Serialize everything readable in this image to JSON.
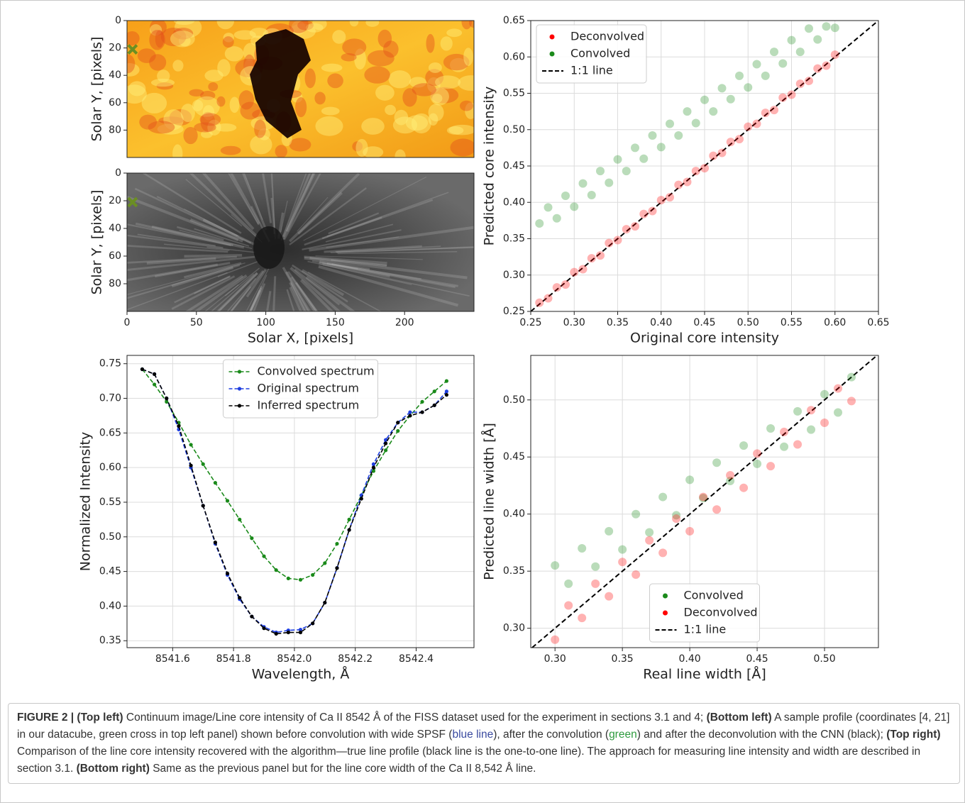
{
  "chart_data": [
    {
      "type": "image",
      "colormap": "hot",
      "ylabel": "Solar Y, [pixels]",
      "xlim": [
        0,
        250
      ],
      "ylim": [
        100,
        0
      ],
      "yticks": [
        0,
        20,
        40,
        60,
        80
      ],
      "marker_x": 4,
      "marker_y": 21,
      "marker_color": "#6b8e23"
    },
    {
      "type": "image",
      "colormap": "gray",
      "xlabel": "Solar X, [pixels]",
      "ylabel": "Solar Y, [pixels]",
      "xlim": [
        0,
        250
      ],
      "ylim": [
        100,
        0
      ],
      "xticks": [
        0,
        50,
        100,
        150,
        200
      ],
      "yticks": [
        0,
        20,
        40,
        60,
        80
      ],
      "marker_x": 4,
      "marker_y": 21,
      "marker_color": "#6b8e23"
    },
    {
      "type": "scatter",
      "xlabel": "Original core intensity",
      "ylabel": "Predicted core intensity",
      "xlim": [
        0.25,
        0.65
      ],
      "ylim": [
        0.25,
        0.65
      ],
      "xticks": [
        0.25,
        {
          "value": 0.3,
          "label": "0.30"
        },
        0.35,
        {
          "value": 0.4,
          "label": "0.40"
        },
        0.45,
        {
          "value": 0.5,
          "label": "0.50"
        },
        0.55,
        {
          "value": 0.6,
          "label": "0.60"
        },
        0.65
      ],
      "yticks": [
        0.25,
        {
          "value": 0.3,
          "label": "0.30"
        },
        0.35,
        {
          "value": 0.4,
          "label": "0.40"
        },
        0.45,
        {
          "value": 0.5,
          "label": "0.50"
        },
        0.55,
        {
          "value": 0.6,
          "label": "0.60"
        },
        0.65
      ],
      "grid": true,
      "legend": "upper left",
      "alpha": 0.3,
      "reference_line": "1:1 line",
      "series": [
        {
          "name": "Deconvolved",
          "color": "#ff0000",
          "x": [
            0.26,
            0.27,
            0.28,
            0.29,
            0.3,
            0.31,
            0.32,
            0.33,
            0.34,
            0.35,
            0.36,
            0.37,
            0.38,
            0.39,
            0.4,
            0.41,
            0.42,
            0.43,
            0.44,
            0.45,
            0.46,
            0.47,
            0.48,
            0.49,
            0.5,
            0.51,
            0.52,
            0.53,
            0.54,
            0.55,
            0.56,
            0.57,
            0.58,
            0.59,
            0.6
          ],
          "values": [
            0.262,
            0.268,
            0.283,
            0.287,
            0.304,
            0.308,
            0.323,
            0.327,
            0.344,
            0.348,
            0.363,
            0.367,
            0.384,
            0.388,
            0.403,
            0.407,
            0.424,
            0.428,
            0.443,
            0.447,
            0.464,
            0.468,
            0.483,
            0.487,
            0.504,
            0.508,
            0.523,
            0.527,
            0.544,
            0.548,
            0.563,
            0.567,
            0.584,
            0.588,
            0.603
          ]
        },
        {
          "name": "Convolved",
          "color": "#1a8a1a",
          "x": [
            0.26,
            0.27,
            0.28,
            0.29,
            0.3,
            0.31,
            0.32,
            0.33,
            0.34,
            0.35,
            0.36,
            0.37,
            0.38,
            0.39,
            0.4,
            0.41,
            0.42,
            0.43,
            0.44,
            0.45,
            0.46,
            0.47,
            0.48,
            0.49,
            0.5,
            0.51,
            0.52,
            0.53,
            0.54,
            0.55,
            0.56,
            0.57,
            0.58,
            0.59,
            0.6
          ],
          "values": [
            0.371,
            0.393,
            0.378,
            0.409,
            0.394,
            0.426,
            0.41,
            0.443,
            0.427,
            0.459,
            0.443,
            0.475,
            0.46,
            0.492,
            0.476,
            0.508,
            0.492,
            0.525,
            0.509,
            0.541,
            0.525,
            0.557,
            0.542,
            0.574,
            0.558,
            0.59,
            0.574,
            0.607,
            0.591,
            0.623,
            0.607,
            0.639,
            0.624,
            0.642,
            0.64
          ]
        }
      ]
    },
    {
      "type": "line",
      "xlabel": "Wavelength, Å",
      "ylabel": "Normalized Intensity",
      "xlim": [
        8541.45,
        8542.59
      ],
      "ylim": [
        0.34,
        0.762
      ],
      "xticks": [
        8541.6,
        8541.8,
        {
          "value": 8542.0,
          "label": "8542.0"
        },
        8542.2,
        8542.4
      ],
      "yticks": [
        0.35,
        {
          "value": 0.4,
          "label": "0.40"
        },
        0.45,
        {
          "value": 0.5,
          "label": "0.50"
        },
        0.55,
        {
          "value": 0.6,
          "label": "0.60"
        },
        0.65,
        {
          "value": 0.7,
          "label": "0.70"
        },
        0.75
      ],
      "grid": true,
      "legend": "upper center",
      "x": [
        8541.5,
        8541.54,
        8541.58,
        8541.62,
        8541.66,
        8541.7,
        8541.74,
        8541.78,
        8541.82,
        8541.86,
        8541.9,
        8541.94,
        8541.98,
        8542.02,
        8542.06,
        8542.1,
        8542.14,
        8542.18,
        8542.22,
        8542.26,
        8542.3,
        8542.34,
        8542.38,
        8542.42,
        8542.46,
        8542.5
      ],
      "series": [
        {
          "name": "Convolved spectrum",
          "color": "#1a8a1a",
          "values": [
            0.742,
            0.72,
            0.695,
            0.665,
            0.633,
            0.605,
            0.578,
            0.552,
            0.525,
            0.498,
            0.472,
            0.452,
            0.44,
            0.438,
            0.445,
            0.462,
            0.49,
            0.525,
            0.56,
            0.595,
            0.625,
            0.653,
            0.675,
            0.695,
            0.71,
            0.725
          ]
        },
        {
          "name": "Original spectrum",
          "color": "#1f3fe0",
          "values": [
            0.742,
            0.735,
            0.7,
            0.655,
            0.6,
            0.545,
            0.49,
            0.445,
            0.41,
            0.385,
            0.37,
            0.362,
            0.365,
            0.366,
            0.375,
            0.405,
            0.455,
            0.51,
            0.56,
            0.605,
            0.64,
            0.665,
            0.68,
            0.68,
            0.69,
            0.71
          ]
        },
        {
          "name": "Inferred spectrum",
          "color": "#000000",
          "values": [
            0.742,
            0.735,
            0.7,
            0.66,
            0.603,
            0.545,
            0.492,
            0.447,
            0.412,
            0.385,
            0.368,
            0.36,
            0.362,
            0.362,
            0.375,
            0.405,
            0.455,
            0.51,
            0.555,
            0.6,
            0.635,
            0.665,
            0.675,
            0.68,
            0.69,
            0.705
          ]
        }
      ]
    },
    {
      "type": "scatter",
      "xlabel": "Real line width [Å]",
      "ylabel": "Predicted line width [Å]",
      "xlim": [
        0.282,
        0.54
      ],
      "ylim": [
        0.283,
        0.539
      ],
      "xticks": [
        {
          "value": 0.3,
          "label": "0.30"
        },
        0.35,
        {
          "value": 0.4,
          "label": "0.40"
        },
        0.45,
        {
          "value": 0.5,
          "label": "0.50"
        }
      ],
      "yticks": [
        {
          "value": 0.3,
          "label": "0.30"
        },
        0.35,
        {
          "value": 0.4,
          "label": "0.40"
        },
        0.45,
        {
          "value": 0.5,
          "label": "0.50"
        }
      ],
      "grid": true,
      "legend": "lower center",
      "alpha": 0.3,
      "reference_line": "1:1 line",
      "series": [
        {
          "name": "Convolved",
          "color": "#1a8a1a",
          "x": [
            0.3,
            0.31,
            0.32,
            0.33,
            0.34,
            0.35,
            0.36,
            0.37,
            0.38,
            0.39,
            0.4,
            0.41,
            0.42,
            0.43,
            0.44,
            0.45,
            0.46,
            0.47,
            0.48,
            0.49,
            0.5,
            0.51,
            0.52
          ],
          "values": [
            0.355,
            0.339,
            0.37,
            0.354,
            0.385,
            0.369,
            0.4,
            0.384,
            0.415,
            0.399,
            0.43,
            0.414,
            0.445,
            0.429,
            0.46,
            0.444,
            0.475,
            0.459,
            0.49,
            0.474,
            0.505,
            0.489,
            0.52
          ]
        },
        {
          "name": "Deconvolved",
          "color": "#ff0000",
          "x": [
            0.3,
            0.31,
            0.32,
            0.33,
            0.34,
            0.35,
            0.36,
            0.37,
            0.38,
            0.39,
            0.4,
            0.41,
            0.42,
            0.43,
            0.44,
            0.45,
            0.46,
            0.47,
            0.48,
            0.49,
            0.5,
            0.51,
            0.52
          ],
          "values": [
            0.29,
            0.32,
            0.309,
            0.339,
            0.328,
            0.358,
            0.347,
            0.377,
            0.366,
            0.396,
            0.385,
            0.415,
            0.404,
            0.434,
            0.423,
            0.453,
            0.442,
            0.472,
            0.461,
            0.491,
            0.48,
            0.51,
            0.499
          ]
        }
      ]
    }
  ],
  "caption": [
    {
      "text": "FIGURE 2 | (Top left)",
      "bold": true
    },
    {
      "text": " Continuum image/Line core intensity of Ca II 8542 Å of the FISS dataset used for the experiment in sections 3.1 and 4; "
    },
    {
      "text": "(Bottom left)",
      "bold": true
    },
    {
      "text": " A sample profile (coordinates [4, 21] in our datacube, green cross in top left panel) shown before convolution with wide SPSF ("
    },
    {
      "text": "blue line",
      "color": "#3b4ba0"
    },
    {
      "text": "), after the convolution ("
    },
    {
      "text": "green",
      "color": "#2e9b3e"
    },
    {
      "text": ") and after the deconvolution with the CNN (black); "
    },
    {
      "text": "(Top right)",
      "bold": true
    },
    {
      "text": " Comparison of the line core intensity recovered with the algorithm—true line profile (black line is the one-to-one line). The approach for measuring line intensity and width are described in section 3.1. "
    },
    {
      "text": "(Bottom right)",
      "bold": true
    },
    {
      "text": " Same as the previous panel but for the line core width of the Ca II 8,542 Å line."
    }
  ]
}
